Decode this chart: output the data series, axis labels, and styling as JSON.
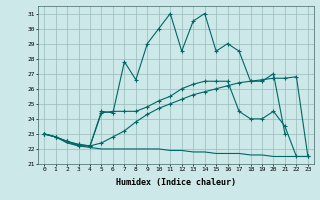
{
  "xlabel": "Humidex (Indice chaleur)",
  "bg_color": "#cce8e8",
  "grid_color": "#99bbbb",
  "line_color": "#006666",
  "xlim": [
    -0.5,
    23.5
  ],
  "ylim": [
    21,
    31.5
  ],
  "yticks": [
    21,
    22,
    23,
    24,
    25,
    26,
    27,
    28,
    29,
    30,
    31
  ],
  "xticks": [
    0,
    1,
    2,
    3,
    4,
    5,
    6,
    7,
    8,
    9,
    10,
    11,
    12,
    13,
    14,
    15,
    16,
    17,
    18,
    19,
    20,
    21,
    22,
    23
  ],
  "line1_x": [
    0,
    1,
    2,
    3,
    4,
    5,
    6,
    7,
    8,
    9,
    10,
    11,
    12,
    13,
    14,
    15,
    16,
    17,
    18,
    19,
    20,
    21
  ],
  "line1_y": [
    23.0,
    22.8,
    22.5,
    22.2,
    22.2,
    24.5,
    24.4,
    27.8,
    26.6,
    29.0,
    30.0,
    31.0,
    28.5,
    30.5,
    31.0,
    28.5,
    29.0,
    28.5,
    26.5,
    26.5,
    27.0,
    23.0
  ],
  "line2_x": [
    0,
    1,
    2,
    3,
    4,
    5,
    6,
    7,
    8,
    9,
    10,
    11,
    12,
    13,
    14,
    15,
    16,
    17,
    18,
    19,
    20,
    21,
    22,
    23
  ],
  "line2_y": [
    23.0,
    22.8,
    22.5,
    22.3,
    22.2,
    22.4,
    22.8,
    23.2,
    23.8,
    24.3,
    24.7,
    25.0,
    25.3,
    25.6,
    25.8,
    26.0,
    26.2,
    26.4,
    26.5,
    26.6,
    26.7,
    26.7,
    26.8,
    21.5
  ],
  "line3_x": [
    0,
    1,
    2,
    3,
    4,
    5,
    6,
    7,
    8,
    9,
    10,
    11,
    12,
    13,
    14,
    15,
    16,
    17,
    18,
    19,
    20,
    21,
    22,
    23
  ],
  "line3_y": [
    23.0,
    22.8,
    22.4,
    22.2,
    22.1,
    22.0,
    22.0,
    22.0,
    22.0,
    22.0,
    22.0,
    21.9,
    21.9,
    21.8,
    21.8,
    21.7,
    21.7,
    21.7,
    21.6,
    21.6,
    21.5,
    21.5,
    21.5,
    21.5
  ],
  "line4_x": [
    0,
    1,
    2,
    3,
    4,
    5,
    6,
    7,
    8,
    9,
    10,
    11,
    12,
    13,
    14,
    15,
    16,
    17,
    18,
    19,
    20,
    21,
    22,
    23
  ],
  "line4_y": [
    23.0,
    22.8,
    22.5,
    22.3,
    22.2,
    24.4,
    24.5,
    24.5,
    24.5,
    24.8,
    25.2,
    25.5,
    26.0,
    26.3,
    26.5,
    26.5,
    26.5,
    24.5,
    24.0,
    24.0,
    24.5,
    23.5,
    21.5,
    21.5
  ]
}
